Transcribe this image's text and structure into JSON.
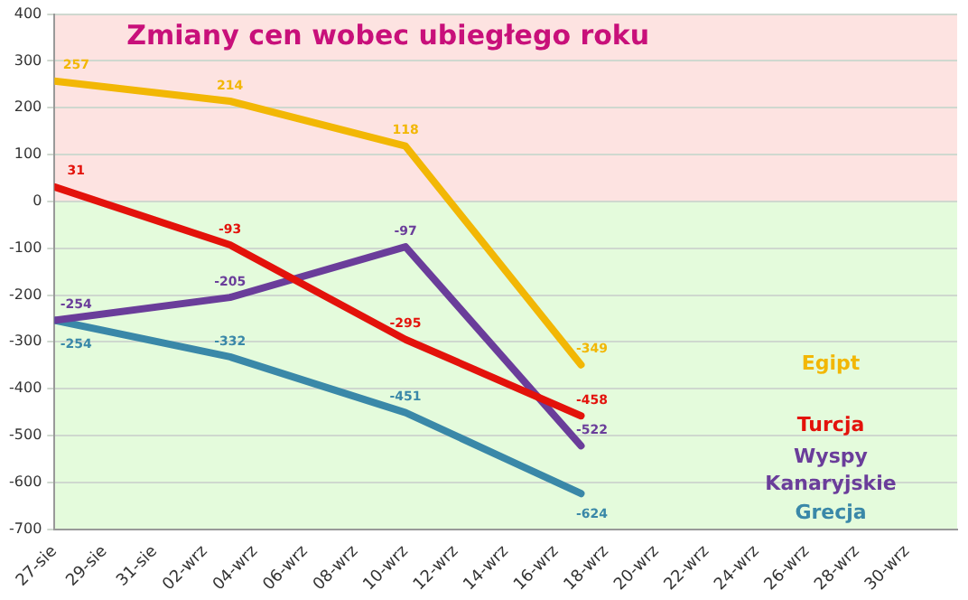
{
  "chart_data": {
    "type": "line",
    "title": "Zmiany cen wobec ubiegłego roku",
    "xlim": [
      "--08-27",
      "--10-02"
    ],
    "xticks": [
      {
        "value": "--08-27",
        "label": "27-sie"
      },
      {
        "value": "--08-29",
        "label": "29-sie"
      },
      {
        "value": "--08-31",
        "label": "31-sie"
      },
      {
        "value": "--09-02",
        "label": "02-wrz"
      },
      {
        "value": "--09-04",
        "label": "04-wrz"
      },
      {
        "value": "--09-06",
        "label": "06-wrz"
      },
      {
        "value": "--09-08",
        "label": "08-wrz"
      },
      {
        "value": "--09-10",
        "label": "10-wrz"
      },
      {
        "value": "--09-12",
        "label": "12-wrz"
      },
      {
        "value": "--09-14",
        "label": "14-wrz"
      },
      {
        "value": "--09-16",
        "label": "16-wrz"
      },
      {
        "value": "--09-18",
        "label": "18-wrz"
      },
      {
        "value": "--09-20",
        "label": "20-wrz"
      },
      {
        "value": "--09-22",
        "label": "22-wrz"
      },
      {
        "value": "--09-24",
        "label": "24-wrz"
      },
      {
        "value": "--09-26",
        "label": "26-wrz"
      },
      {
        "value": "--09-28",
        "label": "28-wrz"
      },
      {
        "value": "--09-30",
        "label": "30-wrz"
      }
    ],
    "ylim": [
      -700,
      400
    ],
    "yticks": [
      -700,
      -600,
      -500,
      -400,
      -300,
      -200,
      -100,
      0,
      100,
      200,
      300,
      400
    ],
    "x": [
      "--08-27",
      "--09-03",
      "--09-10",
      "--09-17"
    ],
    "series": [
      {
        "name": "Egipt",
        "color": "#f2b705",
        "values": [
          257,
          214,
          118,
          -349
        ]
      },
      {
        "name": "Turcja",
        "color": "#e3120b",
        "values": [
          31,
          -93,
          -295,
          -458
        ]
      },
      {
        "name": "Wyspy Kanaryjskie",
        "color": "#6a3d9a",
        "values": [
          -254,
          -205,
          -97,
          -522
        ]
      },
      {
        "name": "Grecja",
        "color": "#3a88a8",
        "values": [
          -254,
          -332,
          -451,
          -624
        ]
      }
    ],
    "bands": [
      {
        "axis": "y",
        "from": 0,
        "to": 400,
        "color": "#fde3e1"
      },
      {
        "axis": "y",
        "from": -700,
        "to": 0,
        "color": "#e4fbdc"
      }
    ],
    "grid": "y",
    "data_labels": true,
    "legend": "right",
    "marker": "none",
    "line_style": "solid"
  }
}
